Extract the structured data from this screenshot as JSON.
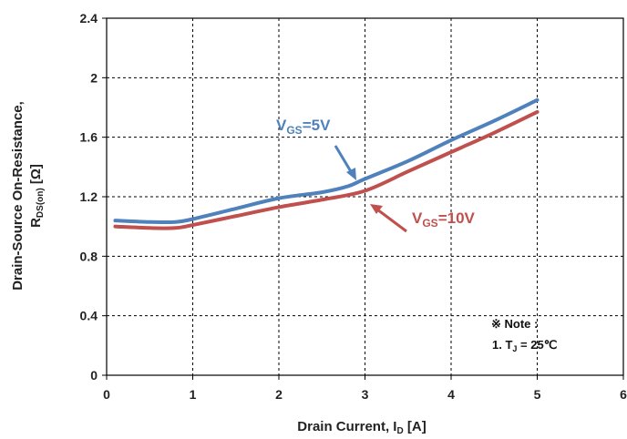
{
  "chart_data": {
    "type": "line",
    "xlabel": {
      "main": "Drain Current, I",
      "sub": "D",
      "unit": " [A]"
    },
    "ylabel": {
      "line1": "Drain-Source On-Resistance,",
      "main": "R",
      "sub": "DS(on)",
      "unit": " [Ω]"
    },
    "xlim": [
      0,
      6
    ],
    "ylim": [
      0,
      2.4
    ],
    "x_ticks": [
      "0",
      "1",
      "2",
      "3",
      "4",
      "5",
      "6"
    ],
    "y_ticks": [
      "0",
      "0.4",
      "0.8",
      "1.2",
      "1.6",
      "2",
      "2.4"
    ],
    "grid": true,
    "series": [
      {
        "name": "VGS=5V",
        "label_main": "V",
        "label_sub": "GS",
        "label_rest": "=5V",
        "color": "#4f81bd",
        "x": [
          0.1,
          0.5,
          0.8,
          1.0,
          1.5,
          2.0,
          2.5,
          2.8,
          3.0,
          3.5,
          4.0,
          4.5,
          5.0
        ],
        "y": [
          1.04,
          1.03,
          1.03,
          1.05,
          1.12,
          1.19,
          1.23,
          1.27,
          1.32,
          1.44,
          1.58,
          1.71,
          1.85
        ]
      },
      {
        "name": "VGS=10V",
        "label_main": "V",
        "label_sub": "GS",
        "label_rest": "=10V",
        "color": "#c0504d",
        "x": [
          0.1,
          0.5,
          0.8,
          1.0,
          1.5,
          2.0,
          2.5,
          3.0,
          3.5,
          4.0,
          4.5,
          5.0
        ],
        "y": [
          1.0,
          0.99,
          0.99,
          1.01,
          1.07,
          1.13,
          1.18,
          1.24,
          1.37,
          1.5,
          1.63,
          1.77
        ]
      }
    ],
    "note": {
      "line1": "※ Note :",
      "line2_main": "1. T",
      "line2_sub": "J",
      "line2_rest": " = 25℃"
    }
  }
}
